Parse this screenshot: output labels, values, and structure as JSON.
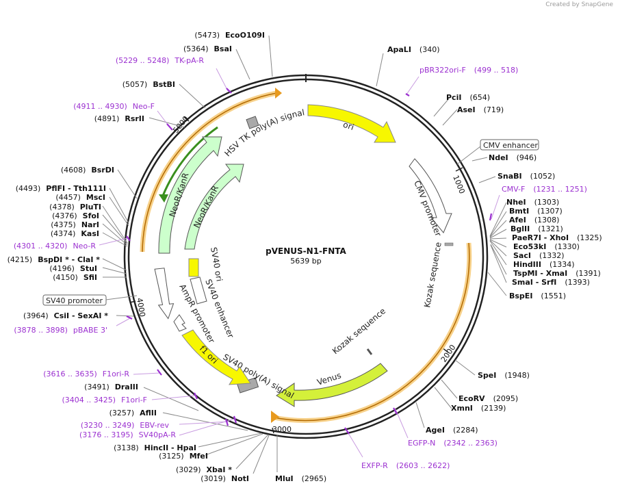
{
  "credit": "Created by SnapGene",
  "plasmid": {
    "name": "pVENUS-N1-FNTA",
    "size_label": "5639 bp",
    "length": 5639
  },
  "ticks": [
    "1000",
    "2000",
    "3000",
    "4000",
    "5000"
  ],
  "enzymes": [
    {
      "name": "ApaLI",
      "pos": "(340)"
    },
    {
      "name": "PciI",
      "pos": "(654)"
    },
    {
      "name": "AseI",
      "pos": "(719)"
    },
    {
      "name": "NdeI",
      "pos": "(946)"
    },
    {
      "name": "SnaBI",
      "pos": "(1052)"
    },
    {
      "name": "NheI",
      "pos": "(1303)"
    },
    {
      "name": "BmtI",
      "pos": "(1307)"
    },
    {
      "name": "AfeI",
      "pos": "(1308)"
    },
    {
      "name": "BglII",
      "pos": "(1321)"
    },
    {
      "name": "PaeR7I - XhoI",
      "pos": "(1325)"
    },
    {
      "name": "Eco53kI",
      "pos": "(1330)"
    },
    {
      "name": "SacI",
      "pos": "(1332)"
    },
    {
      "name": "HindIII",
      "pos": "(1334)"
    },
    {
      "name": "TspMI - XmaI",
      "pos": "(1391)"
    },
    {
      "name": "SmaI - SrfI",
      "pos": "(1393)"
    },
    {
      "name": "BspEI",
      "pos": "(1551)"
    },
    {
      "name": "SpeI",
      "pos": "(1948)"
    },
    {
      "name": "EcoRV",
      "pos": "(2095)"
    },
    {
      "name": "XmnI",
      "pos": "(2139)"
    },
    {
      "name": "AgeI",
      "pos": "(2284)"
    },
    {
      "name": "MluI",
      "pos": "(2965)"
    },
    {
      "name": "NotI",
      "pos": "(3019)"
    },
    {
      "name": "XbaI *",
      "pos": "(3029)"
    },
    {
      "name": "MfeI",
      "pos": "(3125)"
    },
    {
      "name": "HincII - HpaI",
      "pos": "(3138)"
    },
    {
      "name": "AflII",
      "pos": "(3257)"
    },
    {
      "name": "DraIII",
      "pos": "(3491)"
    },
    {
      "name": "CsiI - SexAI *",
      "pos": "(3964)"
    },
    {
      "name": "SfiI",
      "pos": "(4150)"
    },
    {
      "name": "StuI",
      "pos": "(4196)"
    },
    {
      "name": "BspDI * - ClaI *",
      "pos": "(4215)"
    },
    {
      "name": "KasI",
      "pos": "(4374)"
    },
    {
      "name": "NarI",
      "pos": "(4375)"
    },
    {
      "name": "SfoI",
      "pos": "(4376)"
    },
    {
      "name": "PluTI",
      "pos": "(4378)"
    },
    {
      "name": "MscI",
      "pos": "(4457)"
    },
    {
      "name": "PflFI - Tth111I",
      "pos": "(4493)"
    },
    {
      "name": "BsrDI",
      "pos": "(4608)"
    },
    {
      "name": "RsrII",
      "pos": "(4891)"
    },
    {
      "name": "BstBI",
      "pos": "(5057)"
    },
    {
      "name": "BsaI",
      "pos": "(5364)"
    },
    {
      "name": "EcoO109I",
      "pos": "(5473)"
    }
  ],
  "primers": [
    {
      "name": "pBR322ori-F",
      "range": "(499 .. 518)"
    },
    {
      "name": "CMV-F",
      "range": "(1231 .. 1251)"
    },
    {
      "name": "EGFP-N",
      "range": "(2342 .. 2363)"
    },
    {
      "name": "EXFP-R",
      "range": "(2603 .. 2622)"
    },
    {
      "name": "SV40pA-R",
      "range": "(3176 .. 3195)"
    },
    {
      "name": "EBV-rev",
      "range": "(3230 .. 3249)"
    },
    {
      "name": "F1ori-F",
      "range": "(3404 .. 3425)"
    },
    {
      "name": "F1ori-R",
      "range": "(3616 .. 3635)"
    },
    {
      "name": "pBABE 3'",
      "range": "(3878 .. 3898)"
    },
    {
      "name": "Neo-R",
      "range": "(4301 .. 4320)"
    },
    {
      "name": "Neo-F",
      "range": "(4911 .. 4930)"
    },
    {
      "name": "TK-pA-R",
      "range": "(5229 .. 5248)"
    }
  ],
  "features": {
    "ori": "ori",
    "cmv_enhancer": "CMV enhancer",
    "cmv_promoter": "CMV promoter",
    "kozak1": "Kozak sequence",
    "kozak2": "Kozak sequence",
    "venus": "Venus",
    "sv40_polya": "SV40 poly(A) signal",
    "f1ori": "f1 ori",
    "ampr_promoter": "AmpR promoter",
    "sv40_promoter": "SV40 promoter",
    "sv40_ori": "SV40 ori",
    "sv40_enhancer": "SV40 enhancer",
    "neokan1": "NeoR/KanR",
    "neokan2": "NeoR/KanR",
    "hsv_tk": "HSV TK poly(A) signal"
  },
  "colors": {
    "yellow": "#f7f700",
    "green": "#ccffcc",
    "orange": "#f5a623",
    "primer": "#9b30d0",
    "grey": "#a9a9a9"
  }
}
